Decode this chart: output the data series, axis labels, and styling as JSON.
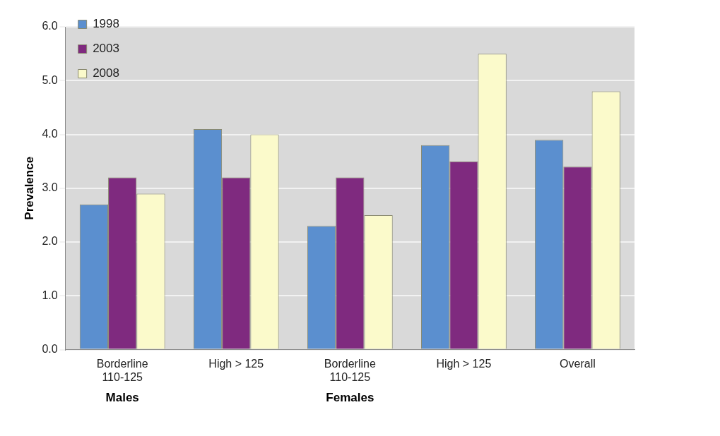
{
  "chart_data": {
    "type": "bar",
    "ylabel": "Prevalence",
    "categories": [
      "Borderline\n110-125",
      "High > 125",
      "Borderline\n110-125",
      "High > 125",
      "Overall"
    ],
    "series": [
      {
        "name": "1998",
        "color": "#5b8fcf",
        "values": [
          2.7,
          4.1,
          2.3,
          3.8,
          3.9
        ]
      },
      {
        "name": "2003",
        "color": "#7f2a7f",
        "values": [
          3.2,
          3.2,
          3.2,
          3.5,
          3.4
        ]
      },
      {
        "name": "2008",
        "color": "#fbfacb",
        "values": [
          2.9,
          4.0,
          2.5,
          5.5,
          4.8
        ]
      }
    ],
    "annotations": [
      "Males",
      "Females"
    ],
    "ylim": [
      0,
      6
    ],
    "yticks": [
      {
        "value": 0,
        "label": "0.0"
      },
      {
        "value": 1,
        "label": "1.0"
      },
      {
        "value": 2,
        "label": "2.0"
      },
      {
        "value": 3,
        "label": "3.0"
      },
      {
        "value": 4,
        "label": "4.0"
      },
      {
        "value": 5,
        "label": "5.0"
      },
      {
        "value": 6,
        "label": "6.0"
      }
    ],
    "grid": "y",
    "legend": "top left"
  }
}
